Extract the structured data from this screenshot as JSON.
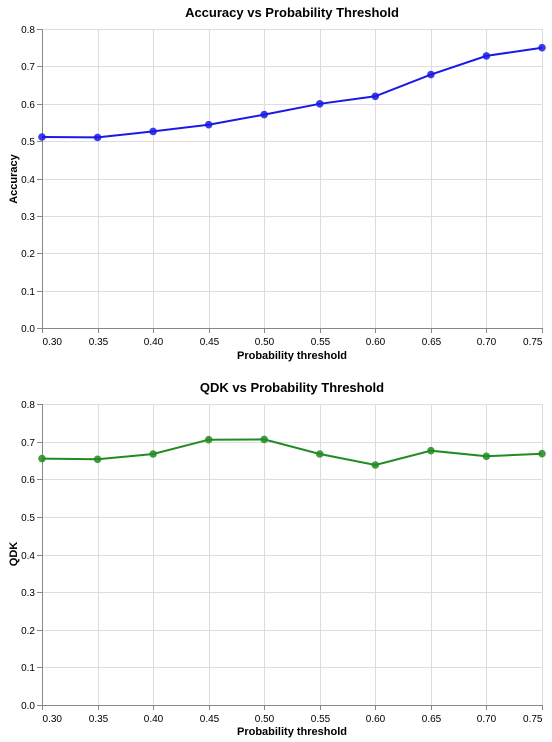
{
  "chart_data": [
    {
      "type": "line",
      "title": "Accuracy vs Probability Threshold",
      "xlabel": "Probability threshold",
      "ylabel": "Accuracy",
      "x": [
        0.3,
        0.35,
        0.4,
        0.45,
        0.5,
        0.55,
        0.6,
        0.65,
        0.7,
        0.75
      ],
      "x_tick_labels": [
        "0.30",
        "0.35",
        "0.40",
        "0.45",
        "0.50",
        "0.55",
        "0.60",
        "0.65",
        "0.70",
        "0.75"
      ],
      "y_tick_values": [
        0.0,
        0.1,
        0.2,
        0.3,
        0.4,
        0.5,
        0.6,
        0.7,
        0.8
      ],
      "y_tick_labels": [
        "0.0",
        "0.1",
        "0.2",
        "0.3",
        "0.4",
        "0.5",
        "0.6",
        "0.7",
        "0.8"
      ],
      "xlim": [
        0.3,
        0.75
      ],
      "ylim": [
        0.0,
        0.8
      ],
      "grid": true,
      "series": [
        {
          "values": [
            0.511,
            0.51,
            0.526,
            0.544,
            0.571,
            0.6,
            0.62,
            0.678,
            0.728,
            0.75
          ],
          "color": "#1a1ae6"
        }
      ]
    },
    {
      "type": "line",
      "title": "QDK vs Probability Threshold",
      "xlabel": "Probability threshold",
      "ylabel": "QDK",
      "x": [
        0.3,
        0.35,
        0.4,
        0.45,
        0.5,
        0.55,
        0.6,
        0.65,
        0.7,
        0.75
      ],
      "x_tick_labels": [
        "0.30",
        "0.35",
        "0.40",
        "0.45",
        "0.50",
        "0.55",
        "0.60",
        "0.65",
        "0.70",
        "0.75"
      ],
      "y_tick_values": [
        0.0,
        0.1,
        0.2,
        0.3,
        0.4,
        0.5,
        0.6,
        0.7,
        0.8
      ],
      "y_tick_labels": [
        "0.0",
        "0.1",
        "0.2",
        "0.3",
        "0.4",
        "0.5",
        "0.6",
        "0.7",
        "0.8"
      ],
      "xlim": [
        0.3,
        0.75
      ],
      "ylim": [
        0.0,
        0.8
      ],
      "grid": true,
      "series": [
        {
          "values": [
            0.655,
            0.653,
            0.667,
            0.705,
            0.706,
            0.667,
            0.638,
            0.676,
            0.661,
            0.668
          ],
          "color": "#228b22"
        }
      ]
    }
  ]
}
